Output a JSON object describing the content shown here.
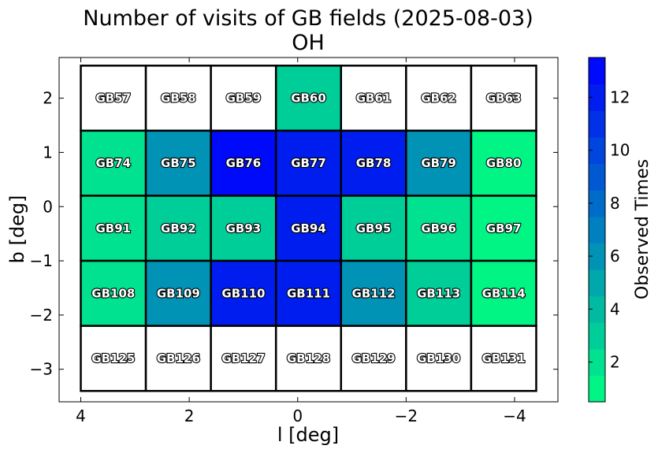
{
  "chart_data": {
    "type": "heatmap",
    "title": "Number of visits of GB fields (2025-08-03)",
    "subtitle": "OH",
    "xlabel": "l [deg]",
    "ylabel": "b [deg]",
    "xlim": [
      4.4,
      -4.8
    ],
    "ylim": [
      -3.6,
      2.75
    ],
    "x_ticks": [
      4,
      2,
      0,
      -2,
      -4
    ],
    "x_tick_labels": [
      "4",
      "2",
      "0",
      "−2",
      "−4"
    ],
    "y_ticks": [
      2,
      1,
      0,
      -1,
      -2,
      -3
    ],
    "y_tick_labels": [
      "2",
      "1",
      "0",
      "−1",
      "−2",
      "−3"
    ],
    "grid": false,
    "columns_l": [
      3.4,
      2.2,
      1.0,
      -0.2,
      -1.4,
      -2.6,
      -3.8
    ],
    "rows_b": [
      2.0,
      0.8,
      -0.4,
      -1.6,
      -2.8
    ],
    "cell_width_deg": 1.2,
    "cell_height_deg": 1.2,
    "fields": [
      [
        "GB57",
        "GB58",
        "GB59",
        "GB60",
        "GB61",
        "GB62",
        "GB63"
      ],
      [
        "GB74",
        "GB75",
        "GB76",
        "GB77",
        "GB78",
        "GB79",
        "GB80"
      ],
      [
        "GB91",
        "GB92",
        "GB93",
        "GB94",
        "GB95",
        "GB96",
        "GB97"
      ],
      [
        "GB108",
        "GB109",
        "GB110",
        "GB111",
        "GB112",
        "GB113",
        "GB114"
      ],
      [
        "GB125",
        "GB126",
        "GB127",
        "GB128",
        "GB129",
        "GB130",
        "GB131"
      ]
    ],
    "values": [
      [
        0,
        0,
        0,
        3,
        0,
        0,
        0
      ],
      [
        2,
        6,
        13,
        12,
        12,
        6,
        1
      ],
      [
        2,
        3,
        3,
        12,
        3,
        2,
        1
      ],
      [
        2,
        6,
        12,
        12,
        6,
        3,
        1
      ],
      [
        0,
        0,
        0,
        0,
        0,
        0,
        0
      ]
    ],
    "colorbar": {
      "label": "Observed Times",
      "min": 0.5,
      "max": 13.5,
      "ticks": [
        2,
        4,
        6,
        8,
        10,
        12
      ],
      "tick_labels": [
        "2",
        "4",
        "6",
        "8",
        "10",
        "12"
      ],
      "color_low": "#00ff80",
      "color_high": "#0000ff",
      "colormap": "winter_r",
      "discrete_steps": 13
    },
    "zero_color": "#ffffff"
  }
}
